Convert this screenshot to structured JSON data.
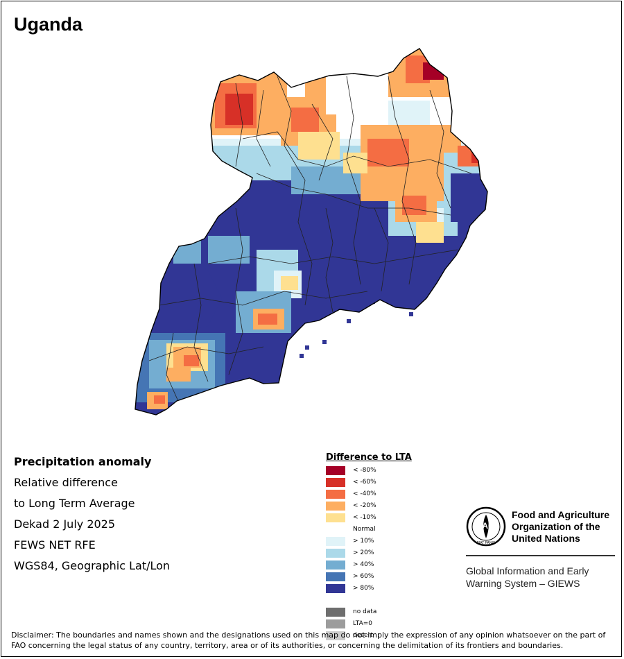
{
  "title": "Uganda",
  "info": {
    "line1": "Precipitation anomaly",
    "line2": "Relative difference",
    "line3": "to Long Term Average",
    "line4": "Dekad 2 July 2025",
    "line5": "FEWS NET RFE",
    "line6": "WGS84, Geographic Lat/Lon"
  },
  "legend": {
    "title": "Difference to LTA",
    "items": [
      {
        "label": "< -80%",
        "color": "#a50026"
      },
      {
        "label": "< -60%",
        "color": "#d73027"
      },
      {
        "label": "< -40%",
        "color": "#f46d43"
      },
      {
        "label": "< -20%",
        "color": "#fdae61"
      },
      {
        "label": "< -10%",
        "color": "#fee090"
      },
      {
        "label": "Normal",
        "color": "#ffffff"
      },
      {
        "label": "> 10%",
        "color": "#e0f3f8"
      },
      {
        "label": "> 20%",
        "color": "#abd9e9"
      },
      {
        "label": "> 40%",
        "color": "#74add1"
      },
      {
        "label": "> 60%",
        "color": "#4575b4"
      },
      {
        "label": "> 80%",
        "color": "#313695"
      },
      {
        "label": "",
        "color": ""
      },
      {
        "label": "no data",
        "color": "#6e6e6e"
      },
      {
        "label": "LTA=0",
        "color": "#9c9c9c"
      },
      {
        "label": "desert",
        "color": "#cccccc"
      }
    ]
  },
  "org": {
    "logo_text": "FAO",
    "logo_motto": "FIAT PANIS",
    "name_line1": "Food and Agriculture",
    "name_line2": "Organization of the",
    "name_line3": "United Nations",
    "giews_line1": "Global Information and Early",
    "giews_line2": "Warning System – GIEWS"
  },
  "disclaimer": "Disclaimer: The boundaries and names shown and the designations used on this map do not imply the expression of any opinion whatsoever on the part of FAO concerning the legal status of any country, territory, area or of its authorities, or concerning the delimitation of its frontiers and boundaries.",
  "colors": {
    "border": "#000000",
    "district_lines": "#222222"
  }
}
